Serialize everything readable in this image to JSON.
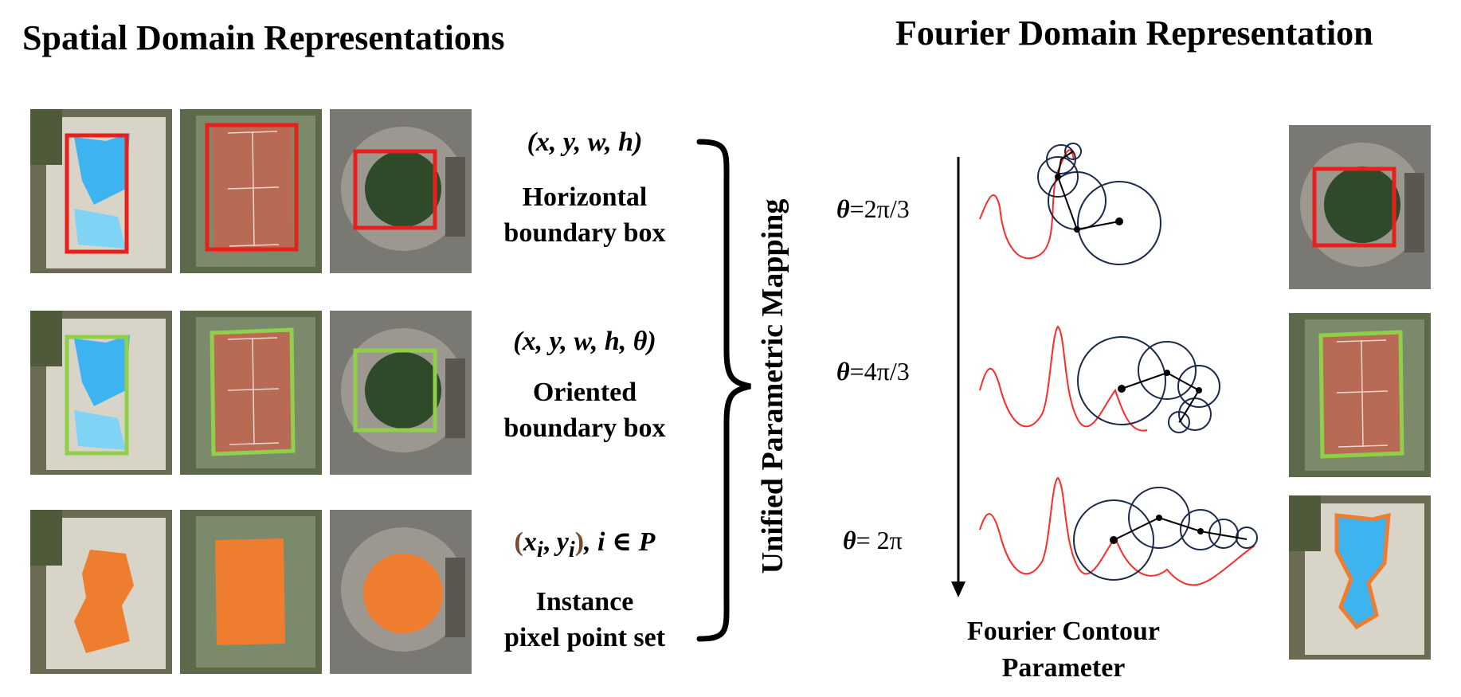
{
  "headings": {
    "spatial": "Spatial Domain Representations",
    "fourier": "Fourier Domain Representation"
  },
  "rows": [
    {
      "formula": "(x, y, w, h)",
      "label_line1": "Horizontal",
      "label_line2": "boundary box",
      "style": "horizontal-box",
      "color": "#e8201c"
    },
    {
      "formula": "(x, y, w, h, θ)",
      "label_line1": "Oriented",
      "label_line2": "boundary box",
      "style": "oriented-box",
      "color": "#8fcf4a"
    },
    {
      "formula_x": "x",
      "formula_y": "y",
      "formula_sub": "i",
      "formula_tail": ", i ∈ P",
      "label_line1": "Instance",
      "label_line2": "pixel point set",
      "style": "mask",
      "color": "#ee7d2f"
    }
  ],
  "mapping_label": "Unified Parametric Mapping",
  "theta_steps": [
    {
      "symbol": "θ",
      "value": "=2π/3"
    },
    {
      "symbol": "θ",
      "value": "=4π/3"
    },
    {
      "symbol": "θ",
      "value": "= 2π"
    }
  ],
  "fourier_caption_line1": "Fourier Contour",
  "fourier_caption_line2": "Parameter",
  "colors": {
    "contour_curve": "#ff2a2a",
    "epicycle": "#1b2a4a",
    "pool": "#3db3ef",
    "court": "#b86a55",
    "roundabout": "#2f4a2a"
  },
  "icons": [
    "pool-image",
    "tennis-court-image",
    "roundabout-image"
  ]
}
